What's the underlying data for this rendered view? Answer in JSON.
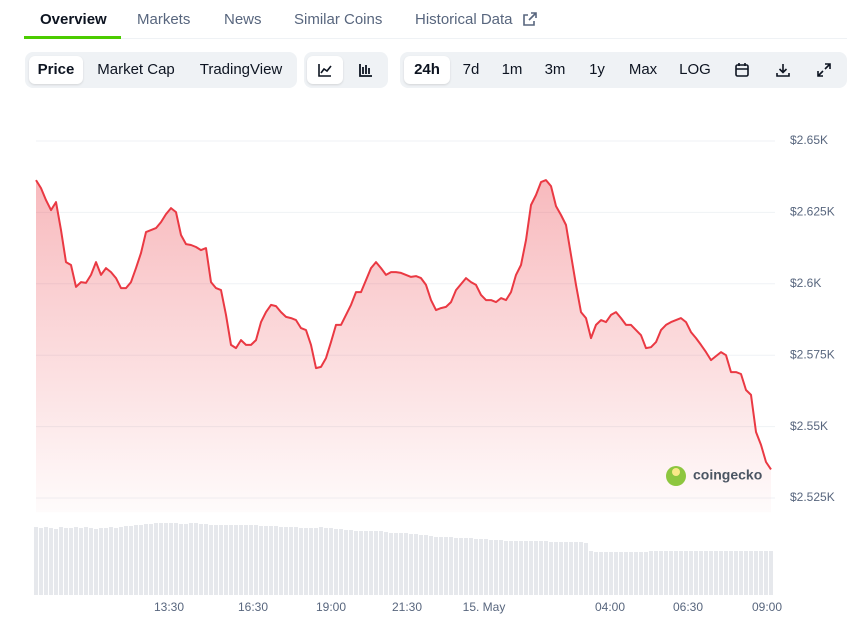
{
  "tabs": [
    "Overview",
    "Markets",
    "News",
    "Similar Coins",
    "Historical Data"
  ],
  "toolbar": {
    "view": [
      "Price",
      "Market Cap",
      "TradingView"
    ],
    "ranges": [
      "24h",
      "7d",
      "1m",
      "3m",
      "1y",
      "Max",
      "LOG"
    ]
  },
  "watermark": "coingecko",
  "chart_data": {
    "type": "area",
    "color": "#ea3943",
    "grid": true,
    "values": [
      2636.3,
      2633.5,
      2629.3,
      2625.8,
      2628.6,
      2618.8,
      2607.6,
      2606.6,
      2598.9,
      2600.6,
      2600.3,
      2603.1,
      2607.6,
      2603.1,
      2605.5,
      2604.1,
      2602.0,
      2598.5,
      2598.5,
      2600.6,
      2605.5,
      2610.8,
      2618.1,
      2618.8,
      2619.5,
      2621.6,
      2624.4,
      2626.5,
      2625.1,
      2617.1,
      2613.9,
      2613.6,
      2612.9,
      2611.8,
      2612.5,
      2600.6,
      2598.5,
      2597.8,
      2589.1,
      2578.6,
      2577.5,
      2580.3,
      2578.6,
      2578.6,
      2580.3,
      2586.6,
      2590.1,
      2592.6,
      2592.2,
      2590.1,
      2588.4,
      2588.0,
      2587.3,
      2584.5,
      2583.8,
      2578.6,
      2570.5,
      2570.9,
      2574.0,
      2579.6,
      2585.6,
      2585.6,
      2589.1,
      2592.6,
      2597.1,
      2597.1,
      2601.3,
      2605.5,
      2607.6,
      2605.5,
      2603.1,
      2604.1,
      2604.1,
      2603.8,
      2603.1,
      2602.4,
      2602.7,
      2602.0,
      2599.6,
      2594.3,
      2590.8,
      2591.5,
      2591.9,
      2593.6,
      2597.8,
      2599.9,
      2602.0,
      2600.6,
      2599.6,
      2596.1,
      2594.3,
      2594.3,
      2593.6,
      2595.0,
      2594.3,
      2597.1,
      2603.1,
      2606.6,
      2615.3,
      2627.6,
      2631.1,
      2635.6,
      2636.3,
      2634.2,
      2627.2,
      2624.1,
      2620.6,
      2610.1,
      2599.6,
      2590.1,
      2588.0,
      2581.0,
      2585.6,
      2587.3,
      2586.6,
      2589.1,
      2590.1,
      2588.0,
      2585.6,
      2585.6,
      2583.8,
      2582.0,
      2577.5,
      2577.8,
      2579.6,
      2583.8,
      2585.6,
      2586.6,
      2587.3,
      2588.0,
      2586.6,
      2583.1,
      2581.0,
      2578.6,
      2576.1,
      2573.3,
      2574.7,
      2576.1,
      2575.0,
      2569.1,
      2569.1,
      2568.4,
      2562.8,
      2561.1,
      2548.1,
      2543.6,
      2537.6,
      2535
    ],
    "volume": [
      68,
      67,
      68,
      67,
      66,
      68,
      67,
      67,
      68,
      67,
      68,
      67,
      66,
      67,
      67,
      68,
      67,
      68,
      69,
      69,
      70,
      70,
      71,
      71,
      72,
      72,
      72,
      72,
      72,
      71,
      71,
      72,
      72,
      71,
      71,
      70,
      70,
      70,
      70,
      70,
      70,
      70,
      70,
      70,
      70,
      69,
      69,
      69,
      69,
      68,
      68,
      68,
      68,
      67,
      67,
      67,
      67,
      68,
      67,
      67,
      66,
      66,
      65,
      65,
      64,
      64,
      64,
      64,
      64,
      64,
      63,
      62,
      62,
      62,
      62,
      61,
      61,
      60,
      60,
      59,
      58,
      58,
      58,
      58,
      57,
      57,
      57,
      57,
      56,
      56,
      56,
      55,
      55,
      55,
      54,
      54,
      54,
      54,
      54,
      54,
      54,
      54,
      54,
      53,
      53,
      53,
      53,
      53,
      53,
      53,
      52,
      44,
      43,
      43,
      43,
      43,
      43,
      43,
      43,
      43,
      43,
      43,
      43,
      44,
      44,
      44,
      44,
      44,
      44,
      44,
      44,
      44,
      44,
      44,
      44,
      44,
      44,
      44,
      44,
      44,
      44,
      44,
      44,
      44,
      44,
      44,
      44,
      44
    ],
    "ylim": [
      2520,
      2660
    ],
    "yticks": [
      {
        "value": 2525,
        "label": "$2.525K"
      },
      {
        "value": 2550,
        "label": "$2.55K"
      },
      {
        "value": 2575,
        "label": "$2.575K"
      },
      {
        "value": 2600,
        "label": "$2.6K"
      },
      {
        "value": 2625,
        "label": "$2.625K"
      },
      {
        "value": 2650,
        "label": "$2.65K"
      }
    ],
    "xticks": [
      {
        "value": 26.6,
        "label": "13:30"
      },
      {
        "value": 43.4,
        "label": "16:30"
      },
      {
        "value": 59,
        "label": "19:00"
      },
      {
        "value": 74.2,
        "label": "21:30"
      },
      {
        "value": 89.6,
        "label": "15. May"
      },
      {
        "value": 114.8,
        "label": "04:00"
      },
      {
        "value": 130.4,
        "label": "06:30"
      },
      {
        "value": 146.2,
        "label": "09:00"
      }
    ]
  }
}
